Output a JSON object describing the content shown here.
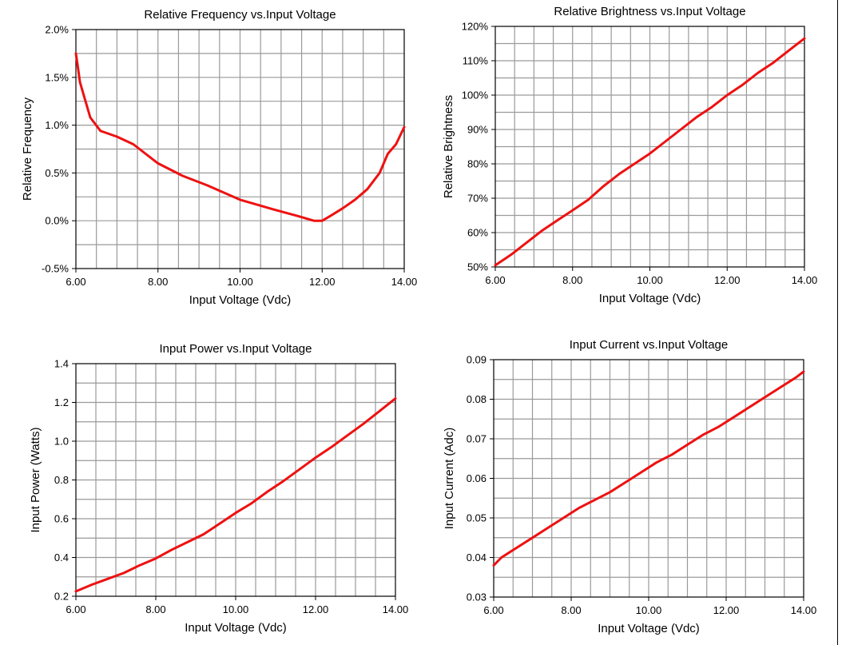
{
  "chart_data": [
    {
      "type": "line",
      "title": "Relative Frequency vs.Input Voltage",
      "xlabel": "Input Voltage (Vdc)",
      "ylabel": "Relative Frequency",
      "xlim": [
        6,
        14
      ],
      "ylim": [
        -0.5,
        2.0
      ],
      "xticks": [
        6,
        8,
        10,
        12,
        14
      ],
      "xtick_labels": [
        "6.00",
        "8.00",
        "10.00",
        "12.00",
        "14.00"
      ],
      "yticks": [
        -0.5,
        0.0,
        0.5,
        1.0,
        1.5,
        2.0
      ],
      "ytick_labels": [
        "-0.5%",
        "0.0%",
        "0.5%",
        "1.0%",
        "1.5%",
        "2.0%"
      ],
      "grid": true,
      "color": "#ee1111",
      "series": [
        {
          "x": [
            6.0,
            6.05,
            6.1,
            6.2,
            6.35,
            6.6,
            7.0,
            7.4,
            8.0,
            8.6,
            9.2,
            10.0,
            10.8,
            11.4,
            11.8,
            12.0,
            12.2,
            12.5,
            12.8,
            13.1,
            13.4,
            13.6,
            13.8,
            14.0
          ],
          "y": [
            1.75,
            1.6,
            1.45,
            1.3,
            1.08,
            0.94,
            0.88,
            0.8,
            0.6,
            0.47,
            0.37,
            0.22,
            0.12,
            0.05,
            0.0,
            0.0,
            0.05,
            0.13,
            0.22,
            0.33,
            0.5,
            0.7,
            0.8,
            0.98
          ]
        }
      ]
    },
    {
      "type": "line",
      "title": "Relative Brightness vs.Input Voltage",
      "xlabel": "Input Voltage (Vdc)",
      "ylabel": "Relative Brightness",
      "xlim": [
        6,
        14
      ],
      "ylim": [
        50,
        120
      ],
      "xticks": [
        6,
        8,
        10,
        12,
        14
      ],
      "xtick_labels": [
        "6.00",
        "8.00",
        "10.00",
        "12.00",
        "14.00"
      ],
      "yticks": [
        50,
        60,
        70,
        80,
        90,
        100,
        110,
        120
      ],
      "ytick_labels": [
        "50%",
        "60%",
        "70%",
        "80%",
        "90%",
        "100%",
        "110%",
        "120%"
      ],
      "grid": true,
      "color": "#ee1111",
      "series": [
        {
          "x": [
            6.0,
            6.4,
            6.8,
            7.2,
            7.6,
            8.0,
            8.4,
            8.8,
            9.2,
            9.6,
            10.0,
            10.4,
            10.8,
            11.2,
            11.6,
            12.0,
            12.4,
            12.8,
            13.2,
            13.6,
            14.0
          ],
          "y": [
            50.5,
            53.5,
            57,
            60.5,
            63.5,
            66.5,
            69.5,
            73.5,
            77,
            80,
            83,
            86.5,
            90,
            93.5,
            96.5,
            100,
            103,
            106.5,
            109.5,
            113,
            116.5
          ]
        }
      ]
    },
    {
      "type": "line",
      "title": "Input Power vs.Input Voltage",
      "xlabel": "Input Voltage (Vdc)",
      "ylabel": "Input Power (Watts)",
      "xlim": [
        6,
        14
      ],
      "ylim": [
        0.2,
        1.4
      ],
      "xticks": [
        6,
        8,
        10,
        12,
        14
      ],
      "xtick_labels": [
        "6.00",
        "8.00",
        "10.00",
        "12.00",
        "14.00"
      ],
      "yticks": [
        0.2,
        0.4,
        0.6,
        0.8,
        1.0,
        1.2,
        1.4
      ],
      "ytick_labels": [
        "0.2",
        "0.4",
        "0.6",
        "0.8",
        "1.0",
        "1.2",
        "1.4"
      ],
      "grid": true,
      "color": "#ee1111",
      "series": [
        {
          "x": [
            6.0,
            6.4,
            6.8,
            7.2,
            7.6,
            8.0,
            8.4,
            8.8,
            9.2,
            9.6,
            10.0,
            10.4,
            10.8,
            11.2,
            11.6,
            12.0,
            12.4,
            12.8,
            13.2,
            13.6,
            14.0
          ],
          "y": [
            0.225,
            0.26,
            0.29,
            0.32,
            0.36,
            0.395,
            0.44,
            0.48,
            0.52,
            0.575,
            0.63,
            0.68,
            0.74,
            0.795,
            0.855,
            0.915,
            0.97,
            1.03,
            1.09,
            1.155,
            1.22
          ]
        }
      ]
    },
    {
      "type": "line",
      "title": "Input Current vs.Input Voltage",
      "xlabel": "Input Voltage (Vdc)",
      "ylabel": "Input Current (Adc)",
      "xlim": [
        6,
        14
      ],
      "ylim": [
        0.03,
        0.09
      ],
      "xticks": [
        6,
        8,
        10,
        12,
        14
      ],
      "xtick_labels": [
        "6.00",
        "8.00",
        "10.00",
        "12.00",
        "14.00"
      ],
      "yticks": [
        0.03,
        0.04,
        0.05,
        0.06,
        0.07,
        0.08,
        0.09
      ],
      "ytick_labels": [
        "0.03",
        "0.04",
        "0.05",
        "0.06",
        "0.07",
        "0.08",
        "0.09"
      ],
      "grid": true,
      "color": "#ee1111",
      "series": [
        {
          "x": [
            6.0,
            6.2,
            6.6,
            7.0,
            7.4,
            7.8,
            8.2,
            8.6,
            9.0,
            9.4,
            9.8,
            10.2,
            10.6,
            11.0,
            11.4,
            11.8,
            12.2,
            12.6,
            13.0,
            13.4,
            13.8,
            14.0
          ],
          "y": [
            0.038,
            0.04,
            0.0425,
            0.045,
            0.0475,
            0.05,
            0.0525,
            0.0545,
            0.0565,
            0.059,
            0.0615,
            0.064,
            0.066,
            0.0685,
            0.071,
            0.073,
            0.0755,
            0.078,
            0.0805,
            0.083,
            0.0855,
            0.087
          ]
        }
      ]
    }
  ]
}
